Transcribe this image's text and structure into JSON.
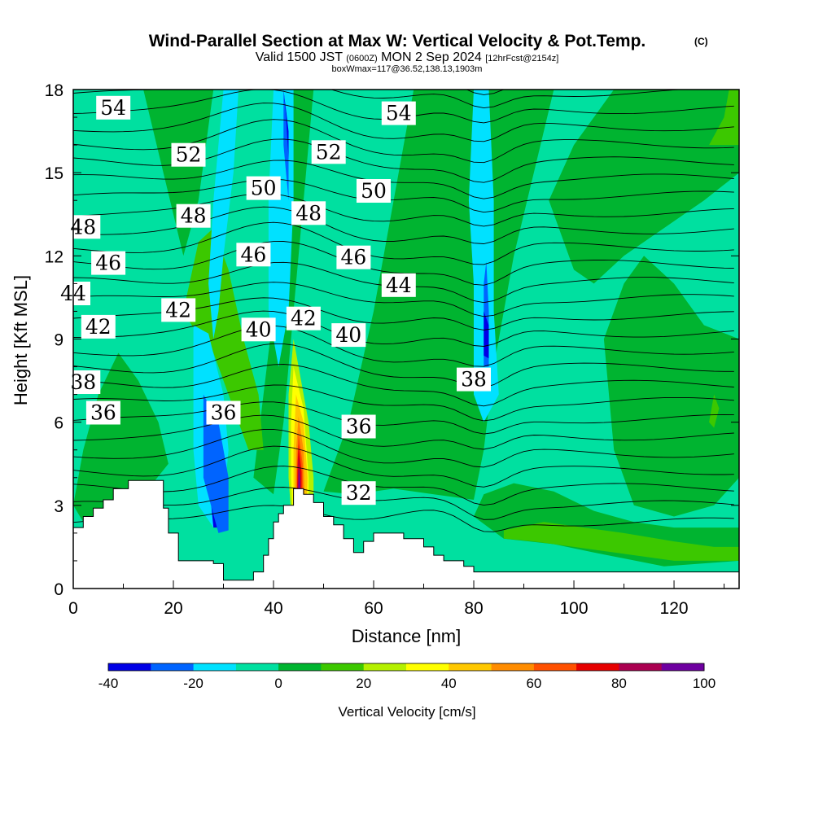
{
  "chart_data": {
    "type": "heatmap",
    "title": "Wind-Parallel Section at Max W: Vertical Velocity & Pot.Temp.",
    "title_mark": "(C)",
    "subtitle_main_a": "Valid 1500 JST",
    "subtitle_small_a": "(0600Z)",
    "subtitle_main_b": "MON 2 Sep 2024",
    "subtitle_small_b": "[12hrFcst@2154z]",
    "subtitle2": "boxWmax=117@36.52,138.13,1903m",
    "xlabel": "Distance [nm]",
    "ylabel": "Height [Kft MSL]",
    "xlim": [
      0,
      133
    ],
    "ylim": [
      0,
      18
    ],
    "x_ticks": [
      "0",
      "20",
      "40",
      "60",
      "80",
      "100",
      "120"
    ],
    "y_ticks": [
      "0",
      "3",
      "6",
      "9",
      "12",
      "15",
      "18"
    ],
    "colorbar": {
      "label": "Vertical Velocity [cm/s]",
      "ticks": [
        "-40",
        "-20",
        "0",
        "20",
        "40",
        "60",
        "80",
        "100"
      ],
      "levels": [
        -40,
        -30,
        -20,
        -10,
        0,
        10,
        20,
        30,
        40,
        50,
        60,
        70,
        80,
        90,
        100
      ],
      "colors": [
        "#0000e6",
        "#0064ff",
        "#00e1ff",
        "#00e0a0",
        "#00b430",
        "#3cc800",
        "#b4f000",
        "#ffff00",
        "#ffc800",
        "#ff8c00",
        "#ff5000",
        "#e60000",
        "#aa0050",
        "#6e00a0"
      ]
    },
    "terrain": [
      [
        0,
        2.2
      ],
      [
        2,
        2.2
      ],
      [
        2,
        2.6
      ],
      [
        4,
        2.6
      ],
      [
        4,
        2.9
      ],
      [
        6,
        2.9
      ],
      [
        6,
        3.2
      ],
      [
        8,
        3.2
      ],
      [
        8,
        3.6
      ],
      [
        11,
        3.6
      ],
      [
        11,
        3.9
      ],
      [
        18,
        3.9
      ],
      [
        18,
        2.9
      ],
      [
        19,
        2.9
      ],
      [
        19,
        2.0
      ],
      [
        21,
        2.0
      ],
      [
        21,
        1.0
      ],
      [
        28,
        1.0
      ],
      [
        28,
        0.9
      ],
      [
        30,
        0.9
      ],
      [
        30,
        0.3
      ],
      [
        36,
        0.3
      ],
      [
        36,
        0.6
      ],
      [
        38,
        0.6
      ],
      [
        38,
        1.2
      ],
      [
        39,
        1.2
      ],
      [
        39,
        1.8
      ],
      [
        40,
        1.8
      ],
      [
        40,
        2.4
      ],
      [
        41,
        2.4
      ],
      [
        41,
        2.7
      ],
      [
        42,
        2.7
      ],
      [
        42,
        3.0
      ],
      [
        44,
        3.0
      ],
      [
        44,
        3.6
      ],
      [
        46,
        3.6
      ],
      [
        46,
        3.4
      ],
      [
        48,
        3.4
      ],
      [
        48,
        3.1
      ],
      [
        50,
        3.1
      ],
      [
        50,
        2.6
      ],
      [
        52,
        2.6
      ],
      [
        52,
        2.3
      ],
      [
        54,
        2.3
      ],
      [
        54,
        1.8
      ],
      [
        56,
        1.8
      ],
      [
        56,
        1.3
      ],
      [
        58,
        1.3
      ],
      [
        58,
        1.7
      ],
      [
        60,
        1.7
      ],
      [
        60,
        2.0
      ],
      [
        66,
        2.0
      ],
      [
        66,
        1.8
      ],
      [
        70,
        1.8
      ],
      [
        70,
        1.5
      ],
      [
        72,
        1.5
      ],
      [
        72,
        1.2
      ],
      [
        74,
        1.2
      ],
      [
        74,
        1.0
      ],
      [
        78,
        1.0
      ],
      [
        78,
        0.8
      ],
      [
        80,
        0.8
      ],
      [
        80,
        0.6
      ],
      [
        83,
        0.6
      ]
    ],
    "isentropes": [
      {
        "label": "32",
        "lx": 57,
        "ly": 3.4
      },
      {
        "label": "36",
        "lx": 30,
        "ly": 6.3
      },
      {
        "label": "36",
        "lx": 57,
        "ly": 5.8
      },
      {
        "label": "36",
        "lx": 6,
        "ly": 6.3
      },
      {
        "label": "38",
        "lx": 2,
        "ly": 7.4
      },
      {
        "label": "38",
        "lx": 80,
        "ly": 7.5
      },
      {
        "label": "40",
        "lx": 37,
        "ly": 9.3
      },
      {
        "label": "40",
        "lx": 55,
        "ly": 9.1
      },
      {
        "label": "42",
        "lx": 5,
        "ly": 9.4
      },
      {
        "label": "42",
        "lx": 21,
        "ly": 10.0
      },
      {
        "label": "42",
        "lx": 46,
        "ly": 9.7
      },
      {
        "label": "44",
        "lx": 0,
        "ly": 10.6
      },
      {
        "label": "44",
        "lx": 65,
        "ly": 10.9
      },
      {
        "label": "46",
        "lx": 7,
        "ly": 11.7
      },
      {
        "label": "46",
        "lx": 36,
        "ly": 12.0
      },
      {
        "label": "46",
        "lx": 56,
        "ly": 11.9
      },
      {
        "label": "48",
        "lx": 2,
        "ly": 13.0
      },
      {
        "label": "48",
        "lx": 24,
        "ly": 13.4
      },
      {
        "label": "48",
        "lx": 47,
        "ly": 13.5
      },
      {
        "label": "50",
        "lx": 38,
        "ly": 14.4
      },
      {
        "label": "50",
        "lx": 60,
        "ly": 14.3
      },
      {
        "label": "52",
        "lx": 23,
        "ly": 15.6
      },
      {
        "label": "52",
        "lx": 51,
        "ly": 15.7
      },
      {
        "label": "54",
        "lx": 8,
        "ly": 17.3
      },
      {
        "label": "54",
        "lx": 65,
        "ly": 17.1
      }
    ]
  }
}
